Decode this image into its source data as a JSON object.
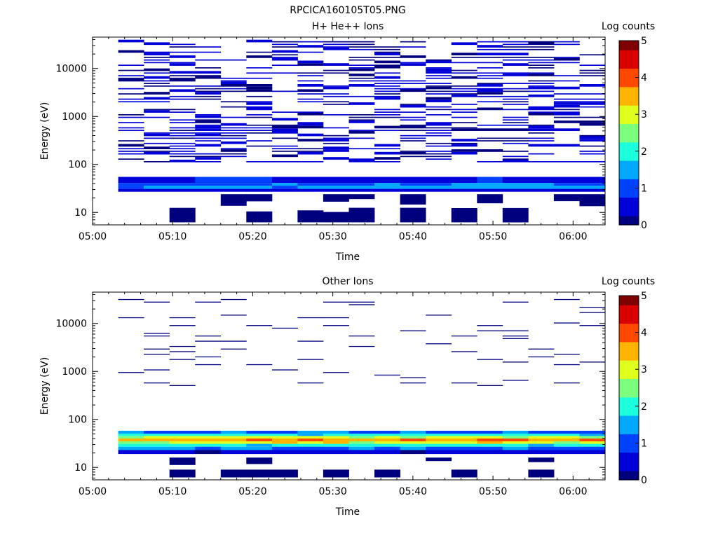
{
  "figure": {
    "title": "RPCICA160105T05.PNG"
  },
  "colors": {
    "colormap": [
      "#00007f",
      "#0000d8",
      "#0040ff",
      "#00a8ff",
      "#1cffdc",
      "#7cff7c",
      "#e0ff1c",
      "#ffb400",
      "#ff4800",
      "#d80000",
      "#7f0000"
    ],
    "background": "#ffffff",
    "axes": "#000000"
  },
  "chart_data": [
    {
      "type": "heatmap",
      "title": "H+ He++ Ions",
      "xlabel": "Time",
      "ylabel": "Energy (eV)",
      "yscale": "log",
      "ylim": [
        5.5,
        45000
      ],
      "xlim": [
        "05:00",
        "06:04"
      ],
      "x_ticks": [
        "05:00",
        "05:10",
        "05:20",
        "05:30",
        "05:40",
        "05:50",
        "06:00"
      ],
      "y_ticks": [
        "10",
        "100",
        "1000",
        "10000"
      ],
      "colorbar": {
        "label": "Log counts",
        "range": [
          0,
          5
        ],
        "ticks": [
          "0",
          "1",
          "2",
          "3",
          "4",
          "5"
        ]
      },
      "time_columns": [
        "05:03",
        "05:06",
        "05:09",
        "05:13",
        "05:16",
        "05:19",
        "05:22",
        "05:25",
        "05:29",
        "05:32",
        "05:35",
        "05:38",
        "05:41",
        "05:45",
        "05:48",
        "05:51",
        "05:54",
        "05:57",
        "06:00"
      ],
      "energy_band_centers_eV": [
        8.5,
        12,
        17,
        22,
        27,
        31,
        36,
        42,
        50,
        60,
        75,
        90,
        110,
        135,
        165,
        200,
        250,
        310,
        380,
        470,
        580,
        720,
        890,
        1100,
        1350,
        1650,
        2000,
        2500,
        3100,
        3800,
        4700,
        5800,
        7200,
        8900,
        11000,
        13500,
        16500,
        20000,
        25000,
        31000,
        38000
      ],
      "notes_on_values": "Mostly low counts (about 0.1-0.5 log counts) scattered above 40 eV; bright band near 30-42 eV (about 1-1.8 log counts)."
    },
    {
      "type": "heatmap",
      "title": "Other Ions",
      "xlabel": "Time",
      "ylabel": "Energy (eV)",
      "yscale": "log",
      "ylim": [
        5.5,
        45000
      ],
      "xlim": [
        "05:00",
        "06:04"
      ],
      "x_ticks": [
        "05:00",
        "05:10",
        "05:20",
        "05:30",
        "05:40",
        "05:50",
        "06:00"
      ],
      "y_ticks": [
        "10",
        "100",
        "1000",
        "10000"
      ],
      "colorbar": {
        "label": "Log counts",
        "range": [
          0,
          5
        ],
        "ticks": [
          "0",
          "1",
          "2",
          "3",
          "4",
          "5"
        ]
      },
      "notes_on_values": "Intense band between about 25 and 55 eV (peaking near 3.5-4 log counts at 35-42 eV); sparse weak counts at higher energies."
    }
  ]
}
